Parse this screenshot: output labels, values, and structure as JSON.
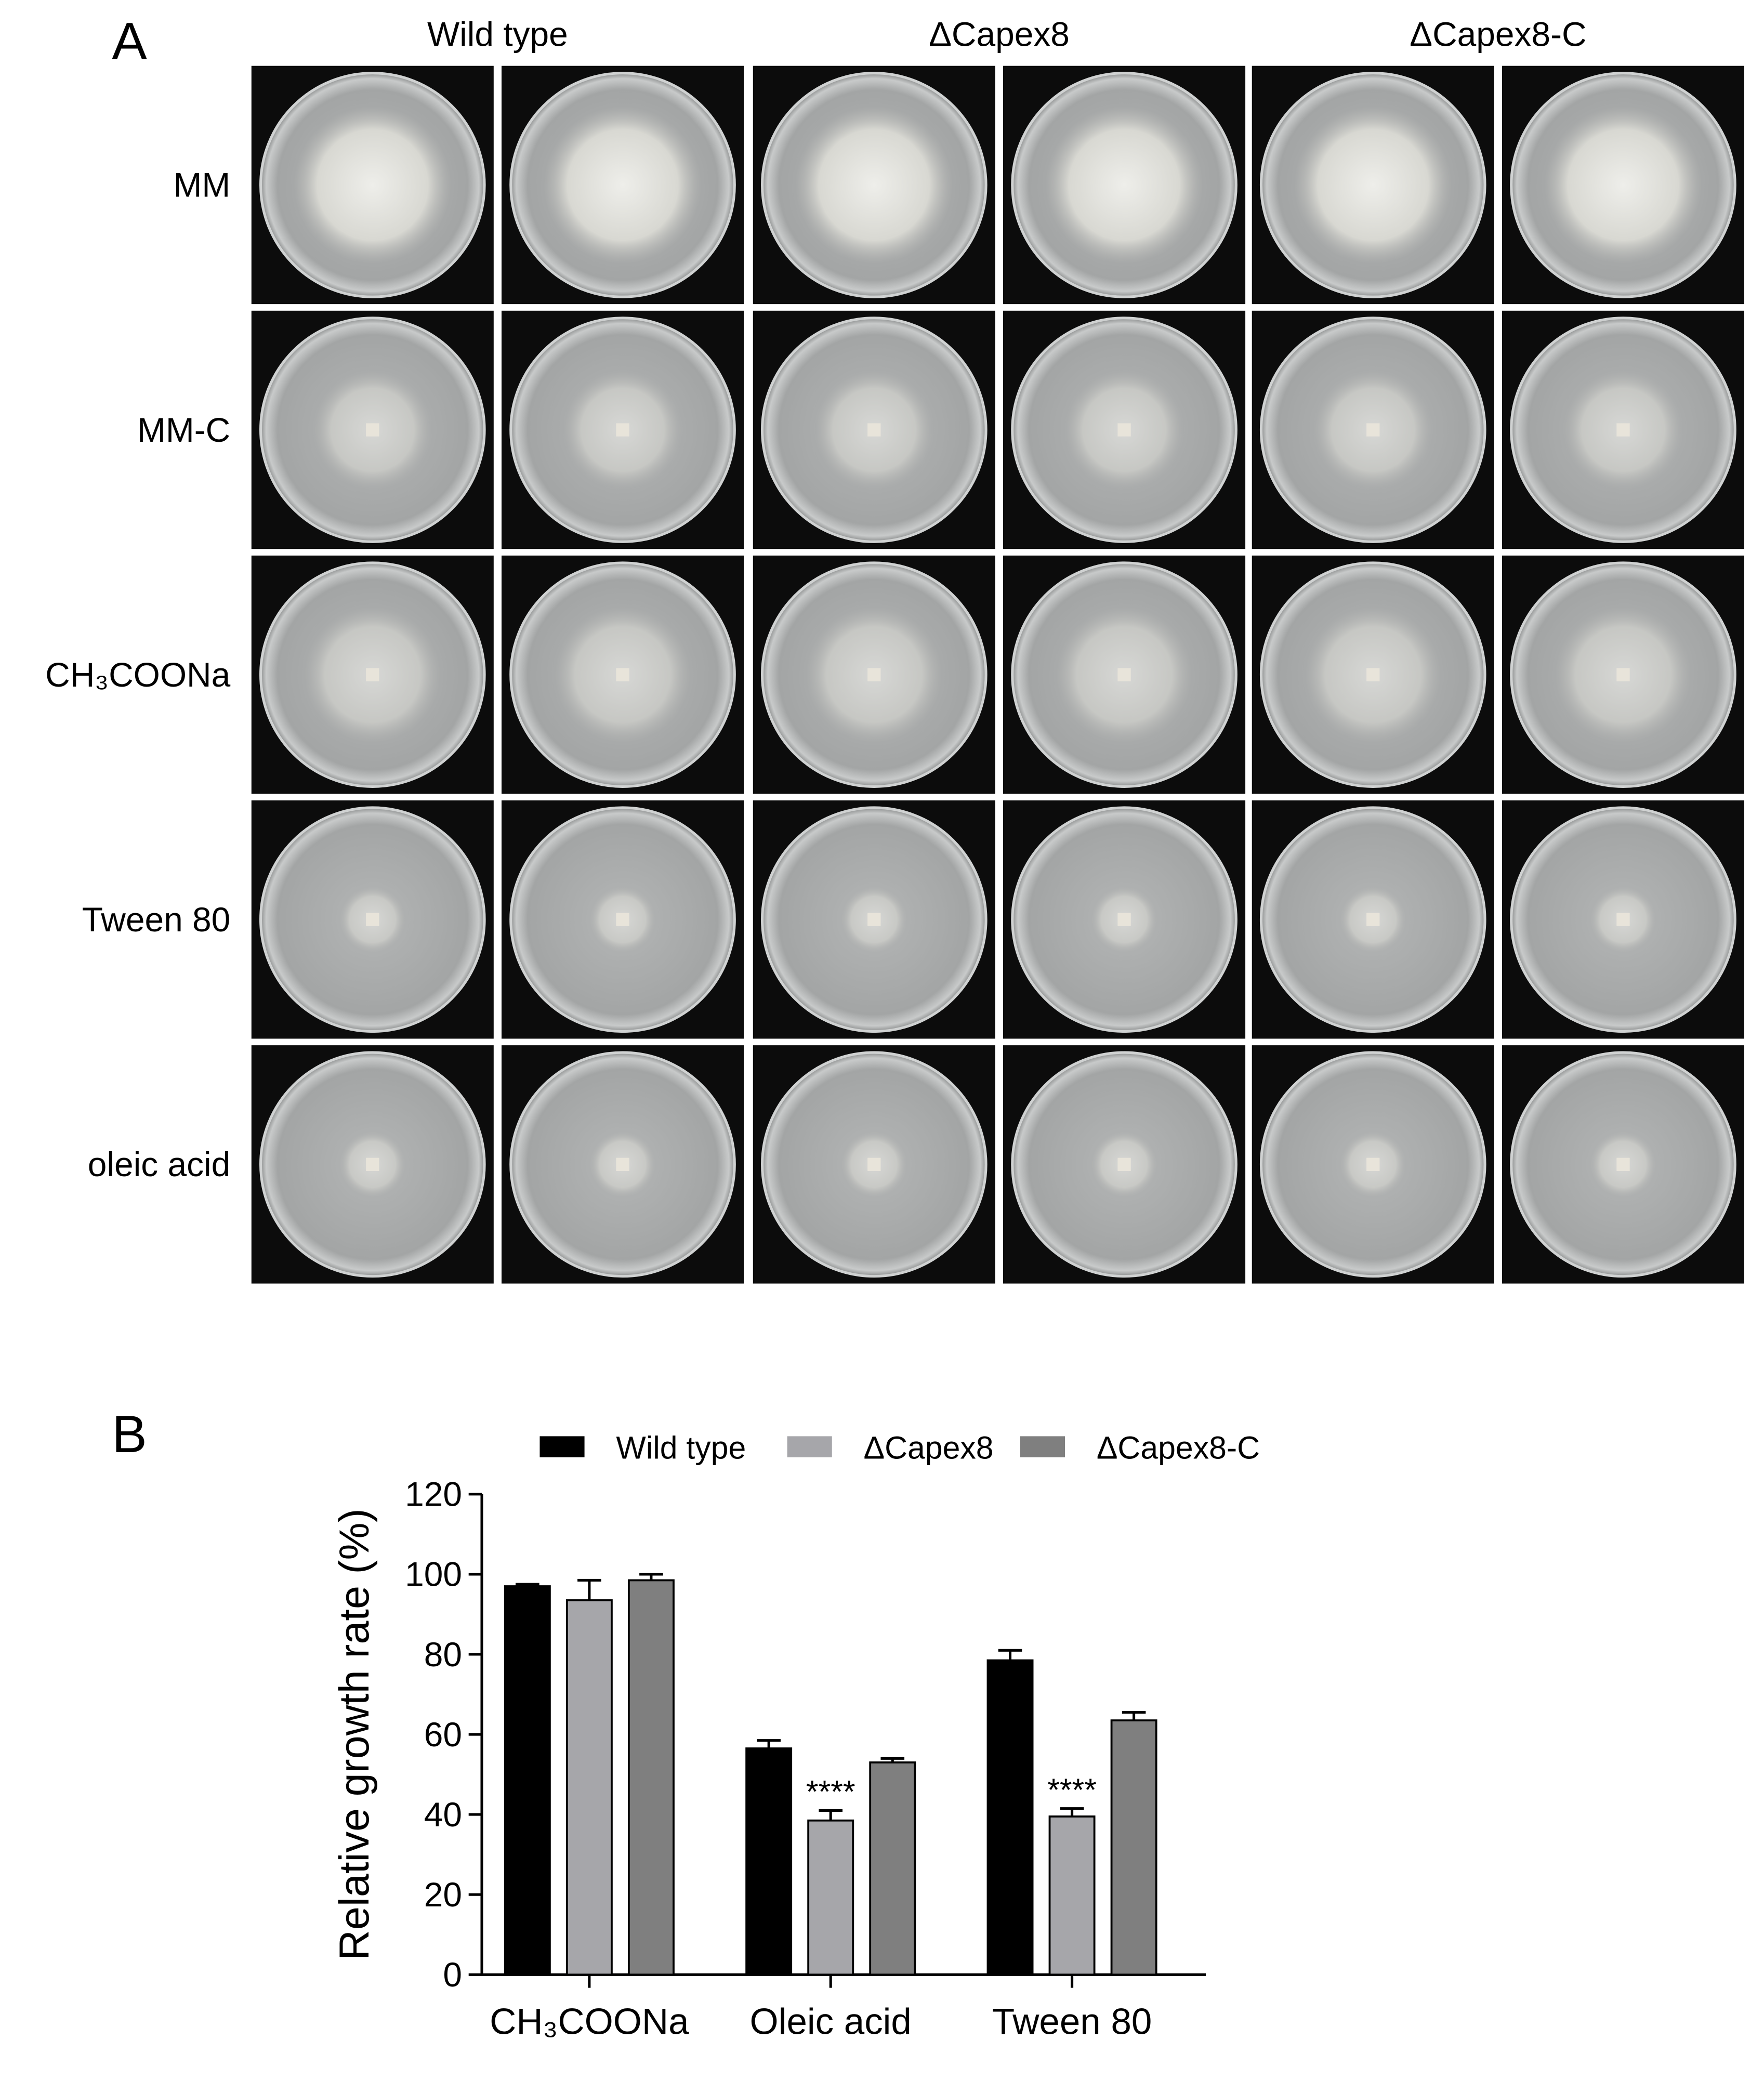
{
  "panels": {
    "a_label": "A",
    "b_label": "B"
  },
  "photo_grid": {
    "columns": [
      "Wild type",
      "ΔCapex8",
      "ΔCapex8-C"
    ],
    "rows": [
      "MM",
      "MM-C",
      "CH₃COONa",
      "Tween 80",
      "oleic acid"
    ]
  },
  "chart_data": {
    "type": "bar",
    "ylabel": "Relative growth rate (%)",
    "categories": [
      "CH₃COONa",
      "Oleic acid",
      "Tween 80"
    ],
    "series": [
      {
        "name": "Wild type",
        "color": "#000000",
        "values": [
          97,
          56.5,
          78.5
        ],
        "errors": [
          0.5,
          2,
          2.5
        ],
        "significance": [
          null,
          null,
          null
        ]
      },
      {
        "name": "ΔCapex8",
        "color": "#a6a6aa",
        "values": [
          93.5,
          38.5,
          39.5
        ],
        "errors": [
          5,
          2.5,
          2
        ],
        "significance": [
          null,
          "****",
          "****"
        ]
      },
      {
        "name": "ΔCapex8-C",
        "color": "#7f7f7f",
        "values": [
          98.5,
          53,
          63.5
        ],
        "errors": [
          1.5,
          1,
          2
        ],
        "significance": [
          null,
          null,
          null
        ]
      }
    ],
    "ylim": [
      0,
      120
    ],
    "yticks": [
      0,
      20,
      40,
      60,
      80,
      100,
      120
    ],
    "legend": "top"
  }
}
